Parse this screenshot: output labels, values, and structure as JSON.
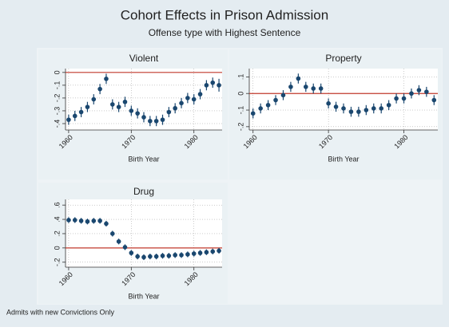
{
  "title": "Cohort Effects in Prison Admission",
  "subtitle": "Offense type with Highest Sentence",
  "note": "Admits with new Convictions Only",
  "chart_data": [
    {
      "type": "scatter",
      "title": "Violent",
      "xlabel": "Birth Year",
      "color": "#1a476f",
      "refline": 0,
      "refline_color": "#c0392b",
      "grid": true,
      "x": [
        1960,
        1961,
        1962,
        1963,
        1964,
        1965,
        1966,
        1967,
        1968,
        1969,
        1970,
        1971,
        1972,
        1973,
        1974,
        1975,
        1976,
        1977,
        1978,
        1979,
        1980,
        1981,
        1982,
        1983,
        1984
      ],
      "values": [
        -0.37,
        -0.34,
        -0.31,
        -0.27,
        -0.21,
        -0.13,
        -0.05,
        -0.25,
        -0.27,
        -0.23,
        -0.3,
        -0.32,
        -0.35,
        -0.38,
        -0.38,
        -0.37,
        -0.31,
        -0.28,
        -0.24,
        -0.2,
        -0.21,
        -0.17,
        -0.1,
        -0.08,
        -0.1
      ],
      "errors": [
        0.04,
        0.04,
        0.04,
        0.04,
        0.04,
        0.04,
        0.04,
        0.04,
        0.04,
        0.04,
        0.04,
        0.04,
        0.04,
        0.04,
        0.04,
        0.04,
        0.04,
        0.04,
        0.04,
        0.04,
        0.04,
        0.04,
        0.04,
        0.04,
        0.05
      ],
      "xlim": [
        1959.5,
        1984.5
      ],
      "xticks": [
        1960,
        1970,
        1980
      ],
      "ylim": [
        -0.45,
        0.03
      ],
      "yticks": [
        {
          "value": -0.4,
          "label": "-.4"
        },
        {
          "value": -0.3,
          "label": "-.3"
        },
        {
          "value": -0.2,
          "label": "-.2"
        },
        {
          "value": -0.1,
          "label": "-.1"
        },
        0
      ]
    },
    {
      "type": "scatter",
      "title": "Property",
      "xlabel": "Birth Year",
      "color": "#1a476f",
      "refline": 0,
      "refline_color": "#c0392b",
      "grid": true,
      "x": [
        1960,
        1961,
        1962,
        1963,
        1964,
        1965,
        1966,
        1967,
        1968,
        1969,
        1970,
        1971,
        1972,
        1973,
        1974,
        1975,
        1976,
        1977,
        1978,
        1979,
        1980,
        1981,
        1982,
        1983,
        1984
      ],
      "values": [
        -0.12,
        -0.09,
        -0.07,
        -0.04,
        -0.01,
        0.04,
        0.09,
        0.04,
        0.03,
        0.03,
        -0.06,
        -0.08,
        -0.09,
        -0.11,
        -0.11,
        -0.1,
        -0.09,
        -0.09,
        -0.07,
        -0.03,
        -0.03,
        0.0,
        0.02,
        0.01,
        -0.04
      ],
      "errors": [
        0.03,
        0.03,
        0.03,
        0.03,
        0.03,
        0.03,
        0.03,
        0.03,
        0.03,
        0.03,
        0.03,
        0.03,
        0.03,
        0.03,
        0.03,
        0.03,
        0.03,
        0.03,
        0.03,
        0.03,
        0.03,
        0.03,
        0.03,
        0.03,
        0.03
      ],
      "xlim": [
        1959.5,
        1984.5
      ],
      "xticks": [
        1960,
        1970,
        1980
      ],
      "ylim": [
        -0.22,
        0.15
      ],
      "yticks": [
        {
          "value": -0.2,
          "label": "-.2"
        },
        {
          "value": -0.1,
          "label": "-.1"
        },
        0,
        {
          "value": 0.1,
          "label": ".1"
        }
      ]
    },
    {
      "type": "scatter",
      "title": "Drug",
      "xlabel": "Birth Year",
      "color": "#1a476f",
      "refline": 0,
      "refline_color": "#c0392b",
      "grid": true,
      "x": [
        1960,
        1961,
        1962,
        1963,
        1964,
        1965,
        1966,
        1967,
        1968,
        1969,
        1970,
        1971,
        1972,
        1973,
        1974,
        1975,
        1976,
        1977,
        1978,
        1979,
        1980,
        1981,
        1982,
        1983,
        1984
      ],
      "values": [
        0.39,
        0.39,
        0.38,
        0.37,
        0.38,
        0.38,
        0.34,
        0.2,
        0.09,
        0.01,
        -0.07,
        -0.12,
        -0.13,
        -0.12,
        -0.12,
        -0.11,
        -0.11,
        -0.1,
        -0.1,
        -0.09,
        -0.08,
        -0.07,
        -0.06,
        -0.05,
        -0.04
      ],
      "errors": [
        0.04,
        0.04,
        0.04,
        0.04,
        0.04,
        0.04,
        0.04,
        0.04,
        0.04,
        0.04,
        0.04,
        0.04,
        0.04,
        0.04,
        0.04,
        0.04,
        0.04,
        0.04,
        0.04,
        0.04,
        0.04,
        0.04,
        0.04,
        0.04,
        0.04
      ],
      "xlim": [
        1959.5,
        1984.5
      ],
      "xticks": [
        1960,
        1970,
        1980
      ],
      "ylim": [
        -0.27,
        0.68
      ],
      "yticks": [
        {
          "value": -0.2,
          "label": "-.2"
        },
        0,
        {
          "value": 0.2,
          "label": ".2"
        },
        {
          "value": 0.4,
          "label": ".4"
        },
        {
          "value": 0.6,
          "label": ".6"
        }
      ]
    }
  ]
}
